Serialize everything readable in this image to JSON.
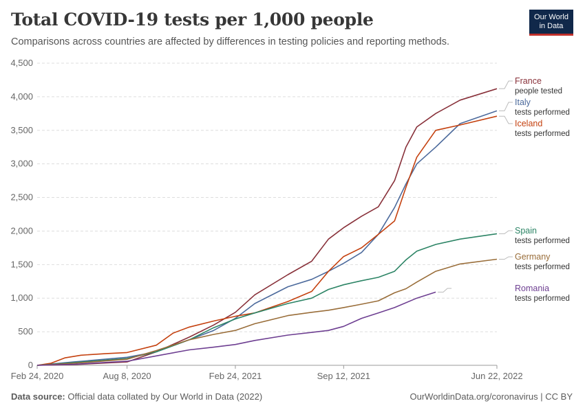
{
  "header": {
    "title": "Total COVID-19 tests per 1,000 people",
    "subtitle": "Comparisons across countries are affected by differences in testing policies and reporting methods."
  },
  "logo": {
    "line1": "Our World",
    "line2": "in Data"
  },
  "footer": {
    "source_label": "Data source:",
    "source_text": "Official data collated by Our World in Data (2022)",
    "right_text": "OurWorldinData.org/coronavirus | CC BY"
  },
  "chart_data": {
    "type": "line",
    "title": "Total COVID-19 tests per 1,000 people",
    "x_ticks": [
      "Feb 24, 2020",
      "Aug 8, 2020",
      "Feb 24, 2021",
      "Sep 12, 2021",
      "Jun 22, 2022"
    ],
    "x_range": [
      "2020-02-24",
      "2022-06-22"
    ],
    "y_ticks": [
      0,
      500,
      1000,
      1500,
      2000,
      2500,
      3000,
      3500,
      4000,
      4500
    ],
    "ylim": [
      0,
      4500
    ],
    "grid": "horizontal dashed",
    "legend": "labels at right end of lines",
    "series": [
      {
        "name": "France",
        "note": "people tested",
        "color": "#883039",
        "points": [
          [
            "2020-02-24",
            0
          ],
          [
            "2020-05-01",
            10
          ],
          [
            "2020-08-08",
            50
          ],
          [
            "2020-10-01",
            200
          ],
          [
            "2020-12-01",
            420
          ],
          [
            "2021-01-15",
            600
          ],
          [
            "2021-02-24",
            790
          ],
          [
            "2021-04-01",
            1050
          ],
          [
            "2021-06-01",
            1350
          ],
          [
            "2021-07-15",
            1550
          ],
          [
            "2021-08-15",
            1880
          ],
          [
            "2021-09-12",
            2050
          ],
          [
            "2021-10-15",
            2220
          ],
          [
            "2021-11-15",
            2360
          ],
          [
            "2021-12-15",
            2750
          ],
          [
            "2022-01-05",
            3250
          ],
          [
            "2022-01-25",
            3550
          ],
          [
            "2022-03-01",
            3750
          ],
          [
            "2022-04-15",
            3950
          ],
          [
            "2022-06-22",
            4120
          ]
        ]
      },
      {
        "name": "Italy",
        "note": "tests performed",
        "color": "#4c6a9c",
        "points": [
          [
            "2020-02-24",
            0
          ],
          [
            "2020-05-01",
            50
          ],
          [
            "2020-08-08",
            120
          ],
          [
            "2020-10-01",
            200
          ],
          [
            "2020-12-01",
            380
          ],
          [
            "2021-01-15",
            520
          ],
          [
            "2021-02-24",
            700
          ],
          [
            "2021-04-01",
            920
          ],
          [
            "2021-06-01",
            1170
          ],
          [
            "2021-07-15",
            1280
          ],
          [
            "2021-08-15",
            1400
          ],
          [
            "2021-09-12",
            1520
          ],
          [
            "2021-10-15",
            1680
          ],
          [
            "2021-11-15",
            1950
          ],
          [
            "2021-12-15",
            2350
          ],
          [
            "2022-01-05",
            2700
          ],
          [
            "2022-01-25",
            3000
          ],
          [
            "2022-03-01",
            3250
          ],
          [
            "2022-04-15",
            3600
          ],
          [
            "2022-06-22",
            3790
          ]
        ]
      },
      {
        "name": "Iceland",
        "note": "tests performed",
        "color": "#c4400e",
        "points": [
          [
            "2020-02-24",
            0
          ],
          [
            "2020-03-20",
            30
          ],
          [
            "2020-04-15",
            110
          ],
          [
            "2020-05-15",
            150
          ],
          [
            "2020-07-01",
            175
          ],
          [
            "2020-08-08",
            190
          ],
          [
            "2020-10-01",
            300
          ],
          [
            "2020-11-01",
            480
          ],
          [
            "2020-12-01",
            570
          ],
          [
            "2021-01-15",
            660
          ],
          [
            "2021-02-24",
            730
          ],
          [
            "2021-04-01",
            780
          ],
          [
            "2021-06-01",
            950
          ],
          [
            "2021-07-15",
            1100
          ],
          [
            "2021-08-15",
            1400
          ],
          [
            "2021-09-12",
            1620
          ],
          [
            "2021-10-15",
            1750
          ],
          [
            "2021-11-15",
            1950
          ],
          [
            "2021-12-15",
            2150
          ],
          [
            "2022-01-05",
            2650
          ],
          [
            "2022-01-25",
            3100
          ],
          [
            "2022-03-01",
            3500
          ],
          [
            "2022-04-15",
            3580
          ],
          [
            "2022-06-22",
            3710
          ]
        ]
      },
      {
        "name": "Spain",
        "note": "tests performed",
        "color": "#2c8465",
        "points": [
          [
            "2020-02-24",
            0
          ],
          [
            "2020-05-01",
            40
          ],
          [
            "2020-08-08",
            100
          ],
          [
            "2020-10-01",
            200
          ],
          [
            "2020-12-01",
            380
          ],
          [
            "2021-01-15",
            560
          ],
          [
            "2021-02-24",
            690
          ],
          [
            "2021-04-01",
            780
          ],
          [
            "2021-06-01",
            920
          ],
          [
            "2021-07-15",
            1000
          ],
          [
            "2021-08-15",
            1130
          ],
          [
            "2021-09-12",
            1200
          ],
          [
            "2021-10-15",
            1260
          ],
          [
            "2021-11-15",
            1310
          ],
          [
            "2021-12-15",
            1400
          ],
          [
            "2022-01-05",
            1570
          ],
          [
            "2022-01-25",
            1700
          ],
          [
            "2022-03-01",
            1800
          ],
          [
            "2022-04-15",
            1880
          ],
          [
            "2022-06-22",
            1960
          ]
        ]
      },
      {
        "name": "Germany",
        "note": "tests performed",
        "color": "#996d39",
        "points": [
          [
            "2020-02-24",
            0
          ],
          [
            "2020-05-01",
            30
          ],
          [
            "2020-08-08",
            90
          ],
          [
            "2020-10-01",
            220
          ],
          [
            "2020-12-01",
            380
          ],
          [
            "2021-01-15",
            460
          ],
          [
            "2021-02-24",
            520
          ],
          [
            "2021-04-01",
            620
          ],
          [
            "2021-06-01",
            740
          ],
          [
            "2021-07-15",
            790
          ],
          [
            "2021-08-15",
            820
          ],
          [
            "2021-09-12",
            860
          ],
          [
            "2021-10-15",
            910
          ],
          [
            "2021-11-15",
            960
          ],
          [
            "2021-12-15",
            1080
          ],
          [
            "2022-01-05",
            1140
          ],
          [
            "2022-01-25",
            1240
          ],
          [
            "2022-03-01",
            1400
          ],
          [
            "2022-04-15",
            1510
          ],
          [
            "2022-06-22",
            1580
          ]
        ]
      },
      {
        "name": "Romania",
        "note": "tests performed",
        "color": "#6d3e91",
        "points": [
          [
            "2020-02-24",
            0
          ],
          [
            "2020-05-01",
            15
          ],
          [
            "2020-08-08",
            60
          ],
          [
            "2020-10-01",
            140
          ],
          [
            "2020-12-01",
            230
          ],
          [
            "2021-01-15",
            270
          ],
          [
            "2021-02-24",
            310
          ],
          [
            "2021-04-01",
            370
          ],
          [
            "2021-06-01",
            450
          ],
          [
            "2021-07-15",
            490
          ],
          [
            "2021-08-15",
            520
          ],
          [
            "2021-09-12",
            580
          ],
          [
            "2021-10-15",
            700
          ],
          [
            "2021-11-15",
            780
          ],
          [
            "2021-12-15",
            860
          ],
          [
            "2022-01-25",
            1000
          ],
          [
            "2022-03-01",
            1090
          ]
        ]
      }
    ]
  }
}
